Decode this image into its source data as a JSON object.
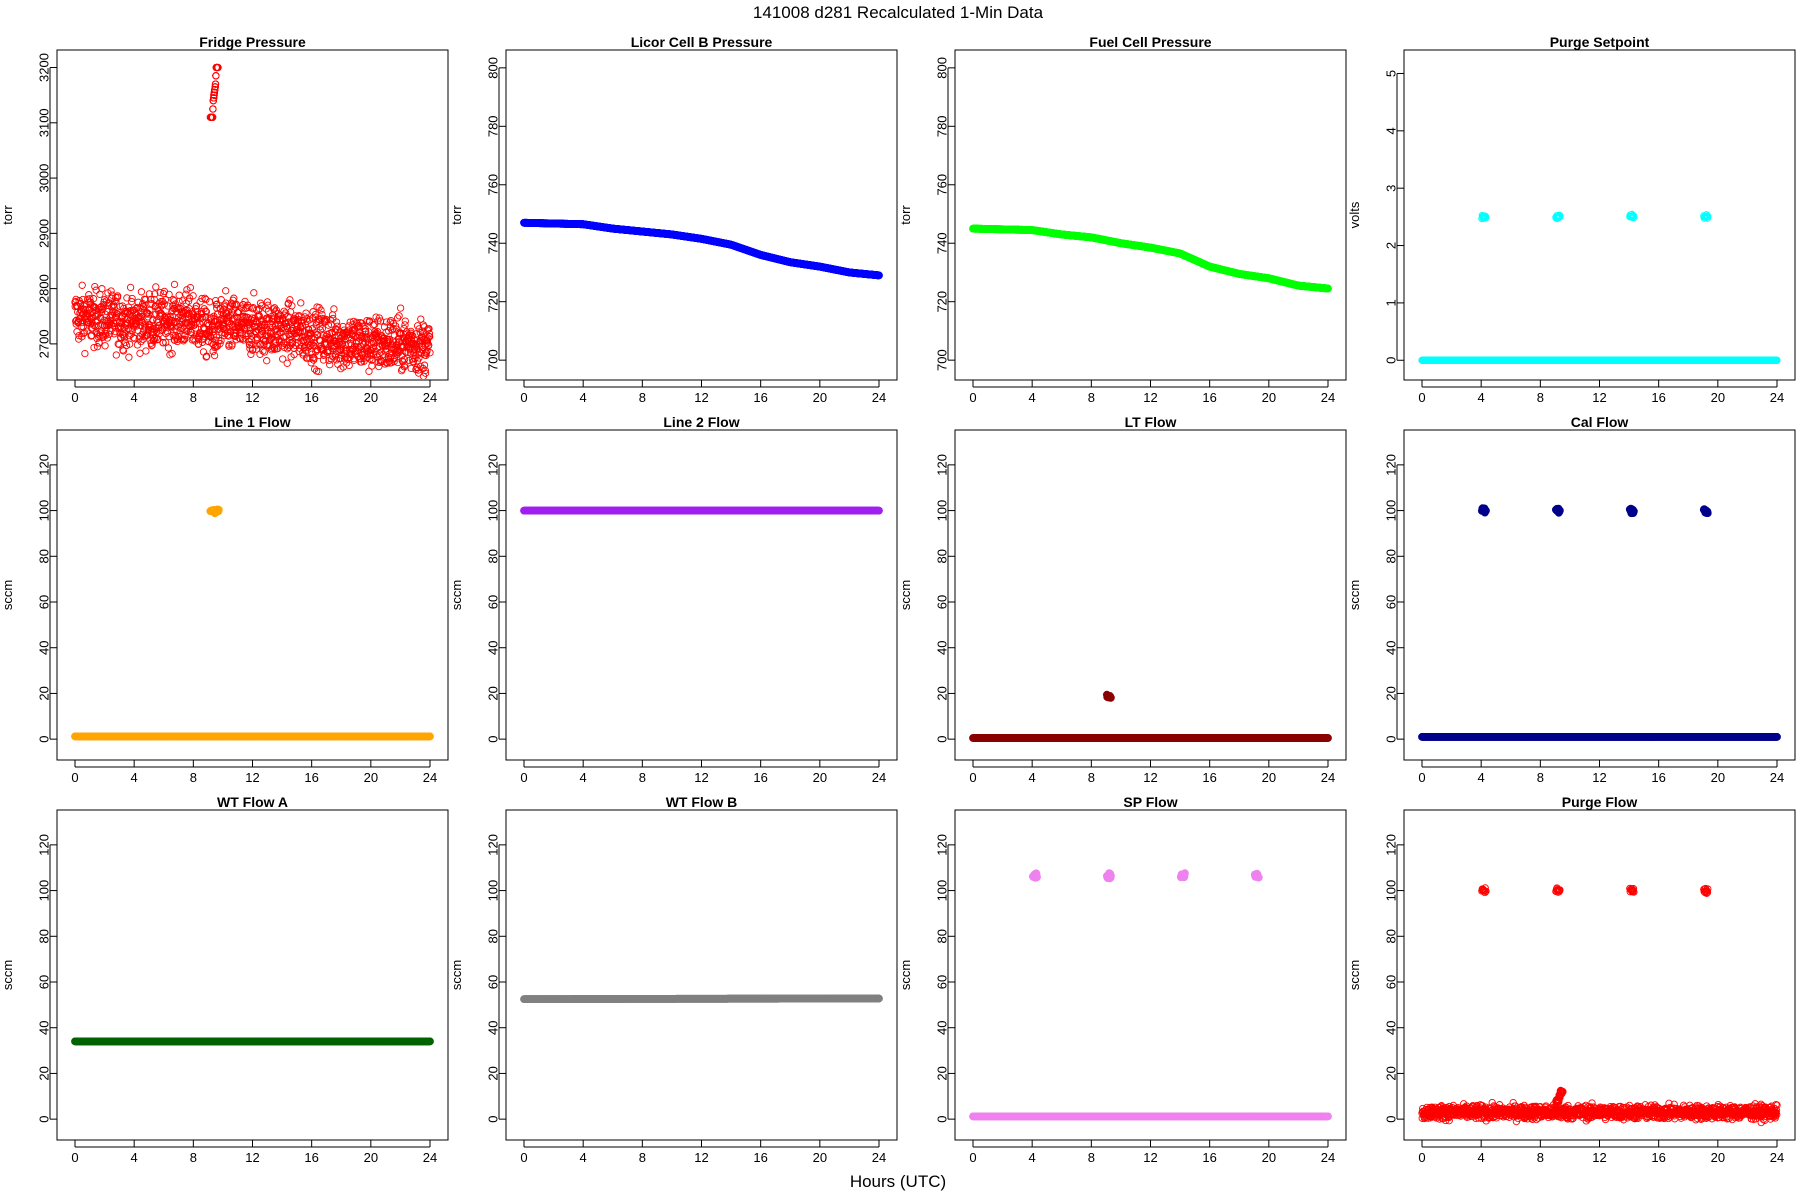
{
  "figure": {
    "title": "141008   d281   Recalculated 1-Min Data",
    "xlabel": "Hours (UTC)"
  },
  "chart_data": [
    {
      "type": "scatter",
      "title": "Fridge Pressure",
      "ylabel": "torr",
      "color": "#ff0000",
      "marker": "open-circle",
      "xlim": [
        0,
        24
      ],
      "ylim": [
        2660,
        3210
      ],
      "xticks": [
        0,
        4,
        8,
        12,
        16,
        20,
        24
      ],
      "yticks": [
        2700,
        2800,
        2900,
        3000,
        3100,
        3200
      ],
      "series": [
        {
          "values": [
            [
              0,
              2750
            ],
            [
              4,
              2740
            ],
            [
              8,
              2745
            ],
            [
              9.2,
              2720
            ],
            [
              10,
              2735
            ],
            [
              12,
              2730
            ],
            [
              14,
              2725
            ],
            [
              16,
              2715
            ],
            [
              18,
              2705
            ],
            [
              20,
              2700
            ],
            [
              22,
              2700
            ],
            [
              24,
              2695
            ]
          ],
          "spread": 25
        },
        {
          "values": [
            [
              9.3,
              3110
            ],
            [
              9.35,
              3140
            ],
            [
              9.4,
              3150
            ],
            [
              9.45,
              3160
            ],
            [
              9.5,
              3170
            ],
            [
              9.55,
              3200
            ]
          ]
        }
      ]
    },
    {
      "type": "scatter",
      "title": "Licor Cell B Pressure",
      "ylabel": "torr",
      "color": "#0000ff",
      "marker": "filled-circle",
      "xlim": [
        0,
        24
      ],
      "ylim": [
        698,
        802
      ],
      "xticks": [
        0,
        4,
        8,
        12,
        16,
        20,
        24
      ],
      "yticks": [
        700,
        720,
        740,
        760,
        780,
        800
      ],
      "series": [
        {
          "values": [
            [
              0,
              747
            ],
            [
              4,
              746.5
            ],
            [
              6,
              745
            ],
            [
              8,
              744
            ],
            [
              10,
              743
            ],
            [
              12,
              741.5
            ],
            [
              14,
              739.5
            ],
            [
              16,
              736
            ],
            [
              18,
              733.5
            ],
            [
              20,
              732
            ],
            [
              22,
              730
            ],
            [
              24,
              729
            ]
          ]
        }
      ]
    },
    {
      "type": "scatter",
      "title": "Fuel Cell Pressure",
      "ylabel": "torr",
      "color": "#00ff00",
      "marker": "filled-circle",
      "xlim": [
        0,
        24
      ],
      "ylim": [
        698,
        802
      ],
      "xticks": [
        0,
        4,
        8,
        12,
        16,
        20,
        24
      ],
      "yticks": [
        700,
        720,
        740,
        760,
        780,
        800
      ],
      "series": [
        {
          "values": [
            [
              0,
              745
            ],
            [
              4,
              744.5
            ],
            [
              6,
              743
            ],
            [
              8,
              742
            ],
            [
              10,
              740
            ],
            [
              12,
              738.5
            ],
            [
              14,
              736.5
            ],
            [
              16,
              732
            ],
            [
              18,
              729.5
            ],
            [
              20,
              728
            ],
            [
              22,
              725.5
            ],
            [
              24,
              724.5
            ]
          ]
        }
      ]
    },
    {
      "type": "scatter",
      "title": "Purge Setpoint",
      "ylabel": "volts",
      "color": "#00ffff",
      "marker": "open-circle",
      "xlim": [
        0,
        24
      ],
      "ylim": [
        -0.1,
        5.2
      ],
      "xticks": [
        0,
        4,
        8,
        12,
        16,
        20,
        24
      ],
      "yticks": [
        0,
        1,
        2,
        3,
        4,
        5
      ],
      "series": [
        {
          "values": [
            [
              0,
              0
            ],
            [
              24,
              0
            ]
          ]
        },
        {
          "values": [
            [
              4.2,
              2.5
            ],
            [
              9.2,
              2.5
            ],
            [
              14.2,
              2.5
            ],
            [
              19.2,
              2.5
            ]
          ]
        }
      ]
    },
    {
      "type": "scatter",
      "title": "Line 1 Flow",
      "ylabel": "sccm",
      "color": "#ffa500",
      "marker": "filled-circle",
      "xlim": [
        0,
        24
      ],
      "ylim": [
        -3,
        130
      ],
      "xticks": [
        0,
        4,
        8,
        12,
        16,
        20,
        24
      ],
      "yticks": [
        0,
        20,
        40,
        60,
        80,
        100,
        120
      ],
      "series": [
        {
          "values": [
            [
              0,
              1.2
            ],
            [
              24,
              1.2
            ]
          ]
        },
        {
          "values": [
            [
              9.3,
              100
            ],
            [
              9.6,
              100
            ]
          ]
        }
      ]
    },
    {
      "type": "scatter",
      "title": "Line 2 Flow",
      "ylabel": "sccm",
      "color": "#a020f0",
      "marker": "filled-circle",
      "xlim": [
        0,
        24
      ],
      "ylim": [
        -3,
        130
      ],
      "xticks": [
        0,
        4,
        8,
        12,
        16,
        20,
        24
      ],
      "yticks": [
        0,
        20,
        40,
        60,
        80,
        100,
        120
      ],
      "series": [
        {
          "values": [
            [
              0,
              100
            ],
            [
              24,
              100
            ]
          ]
        }
      ]
    },
    {
      "type": "scatter",
      "title": "LT Flow",
      "ylabel": "sccm",
      "color": "#8b0000",
      "marker": "filled-circle",
      "xlim": [
        0,
        24
      ],
      "ylim": [
        -3,
        130
      ],
      "xticks": [
        0,
        4,
        8,
        12,
        16,
        20,
        24
      ],
      "yticks": [
        0,
        20,
        40,
        60,
        80,
        100,
        120
      ],
      "series": [
        {
          "values": [
            [
              0,
              0.5
            ],
            [
              24,
              0.5
            ]
          ]
        },
        {
          "values": [
            [
              9.2,
              18.5
            ]
          ]
        }
      ]
    },
    {
      "type": "scatter",
      "title": "Cal Flow",
      "ylabel": "sccm",
      "color": "#00008b",
      "marker": "filled-circle",
      "xlim": [
        0,
        24
      ],
      "ylim": [
        -3,
        130
      ],
      "xticks": [
        0,
        4,
        8,
        12,
        16,
        20,
        24
      ],
      "yticks": [
        0,
        20,
        40,
        60,
        80,
        100,
        120
      ],
      "series": [
        {
          "values": [
            [
              0,
              1
            ],
            [
              24,
              1
            ]
          ]
        },
        {
          "values": [
            [
              4.2,
              100
            ],
            [
              9.2,
              100
            ],
            [
              14.2,
              100
            ],
            [
              19.2,
              100
            ]
          ]
        }
      ]
    },
    {
      "type": "scatter",
      "title": "WT Flow A",
      "ylabel": "sccm",
      "color": "#006400",
      "marker": "filled-circle",
      "xlim": [
        0,
        24
      ],
      "ylim": [
        -3,
        130
      ],
      "xticks": [
        0,
        4,
        8,
        12,
        16,
        20,
        24
      ],
      "yticks": [
        0,
        20,
        40,
        60,
        80,
        100,
        120
      ],
      "series": [
        {
          "values": [
            [
              0,
              34
            ],
            [
              24,
              34
            ]
          ]
        }
      ]
    },
    {
      "type": "scatter",
      "title": "WT Flow B",
      "ylabel": "sccm",
      "color": "#808080",
      "marker": "filled-circle",
      "xlim": [
        0,
        24
      ],
      "ylim": [
        -3,
        130
      ],
      "xticks": [
        0,
        4,
        8,
        12,
        16,
        20,
        24
      ],
      "yticks": [
        0,
        20,
        40,
        60,
        80,
        100,
        120
      ],
      "series": [
        {
          "values": [
            [
              0,
              52.5
            ],
            [
              24,
              52.8
            ]
          ]
        }
      ]
    },
    {
      "type": "scatter",
      "title": "SP Flow",
      "ylabel": "sccm",
      "color": "#ee82ee",
      "marker": "filled-circle",
      "xlim": [
        0,
        24
      ],
      "ylim": [
        -3,
        130
      ],
      "xticks": [
        0,
        4,
        8,
        12,
        16,
        20,
        24
      ],
      "yticks": [
        0,
        20,
        40,
        60,
        80,
        100,
        120
      ],
      "series": [
        {
          "values": [
            [
              0,
              1.2
            ],
            [
              24,
              1.2
            ]
          ]
        },
        {
          "values": [
            [
              4.2,
              106.5
            ],
            [
              9.2,
              106.5
            ],
            [
              14.2,
              106.5
            ],
            [
              19.2,
              106.5
            ]
          ]
        }
      ]
    },
    {
      "type": "scatter",
      "title": "Purge Flow",
      "ylabel": "sccm",
      "color": "#ff0000",
      "marker": "open-circle",
      "xlim": [
        0,
        24
      ],
      "ylim": [
        -3,
        130
      ],
      "xticks": [
        0,
        4,
        8,
        12,
        16,
        20,
        24
      ],
      "yticks": [
        0,
        20,
        40,
        60,
        80,
        100,
        120
      ],
      "series": [
        {
          "values": [
            [
              0,
              3
            ],
            [
              24,
              3
            ]
          ],
          "spread": 1.5
        },
        {
          "values": [
            [
              9.2,
              8
            ],
            [
              9.3,
              10
            ],
            [
              9.4,
              12
            ]
          ]
        },
        {
          "values": [
            [
              4.2,
              100
            ],
            [
              9.2,
              100
            ],
            [
              14.2,
              100
            ],
            [
              19.2,
              100
            ]
          ]
        }
      ]
    }
  ]
}
